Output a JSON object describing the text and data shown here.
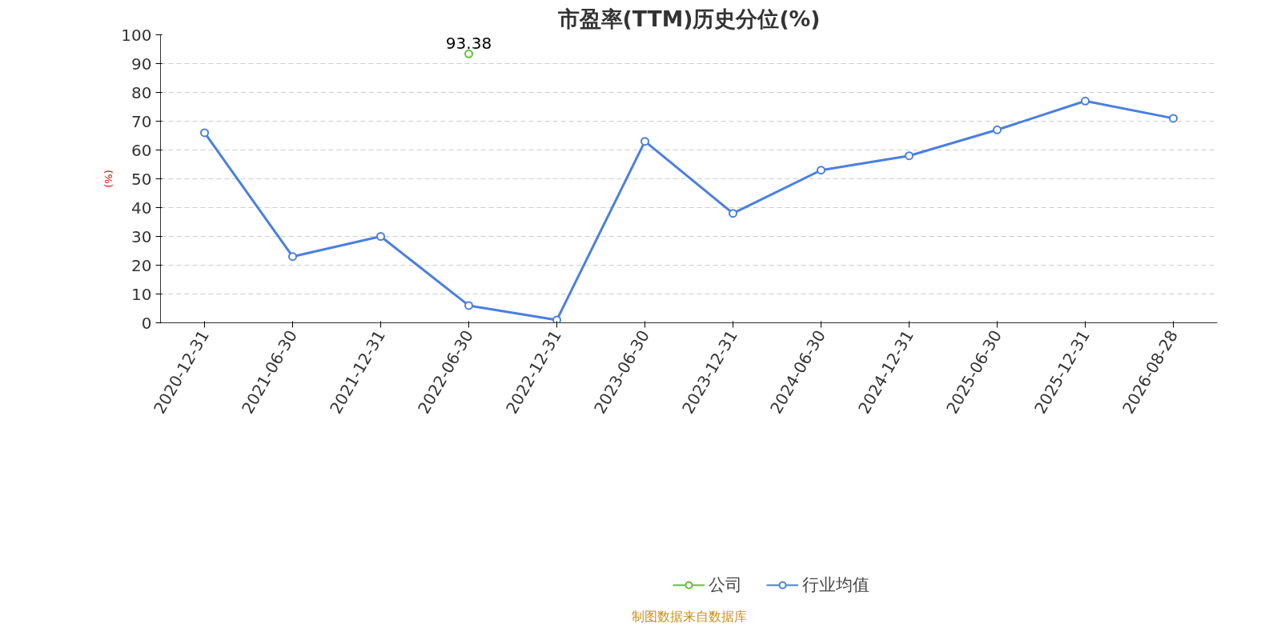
{
  "chart_data": {
    "type": "line",
    "title": "市盈率(TTM)历史分位(%)",
    "ylabel": "(%)",
    "categories": [
      "2020-12-31",
      "2021-06-30",
      "2021-12-31",
      "2022-06-30",
      "2022-12-31",
      "2023-06-30",
      "2023-12-31",
      "2024-06-30",
      "2024-12-31",
      "2025-06-30",
      "2025-12-31",
      "2026-08-28"
    ],
    "series": [
      {
        "name": "公司",
        "color": "#5cc22e",
        "values": [
          null,
          null,
          null,
          93.38,
          null,
          null,
          null,
          null,
          null,
          null,
          null,
          null
        ],
        "value_labels": [
          null,
          null,
          null,
          "93.38",
          null,
          null,
          null,
          null,
          null,
          null,
          null,
          null
        ]
      },
      {
        "name": "行业均值",
        "color": "#4a7fe0",
        "values": [
          66,
          23,
          30,
          6,
          1,
          63,
          38,
          53,
          58,
          67,
          77,
          71
        ]
      }
    ],
    "ylim": [
      0,
      100
    ],
    "yticks": [
      0,
      10,
      20,
      30,
      40,
      50,
      60,
      70,
      80,
      90,
      100
    ],
    "grid": "y",
    "legend": "bottom",
    "marker": "circle",
    "line_style": "solid",
    "annotations": [
      "制图数据来自数据库"
    ]
  }
}
